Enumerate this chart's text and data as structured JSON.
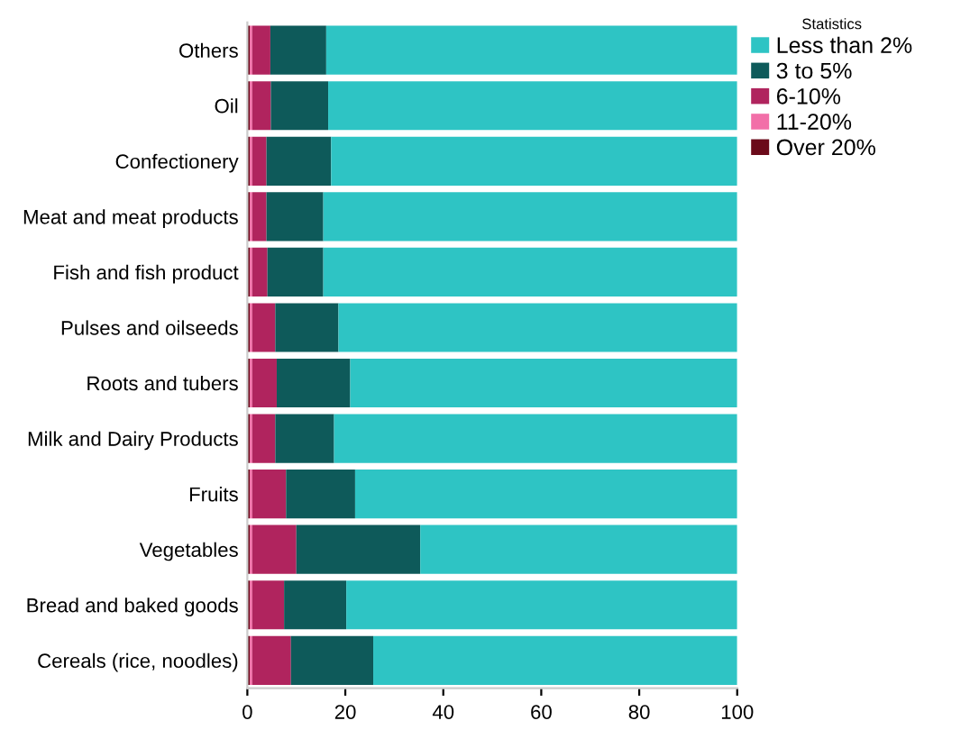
{
  "chart_data": {
    "type": "bar",
    "orientation": "horizontal",
    "stacked": true,
    "categories": [
      "Others",
      "Oil",
      "Confectionery",
      "Meat and meat products",
      "Fish and fish product",
      "Pulses and oilseeds",
      "Roots and tubers",
      "Milk and Dairy Products",
      "Fruits",
      "Vegetables",
      "Bread and baked goods",
      "Cereals (rice, noodles)"
    ],
    "series": [
      {
        "name": "Over 20%",
        "color": "#6b0a1a",
        "values": [
          0.5,
          0.5,
          0.5,
          0.5,
          0.5,
          0.5,
          0.5,
          0.5,
          0.5,
          0.5,
          0.5,
          0.5
        ]
      },
      {
        "name": "11-20%",
        "color": "#f26fa8",
        "values": [
          0.5,
          0.5,
          0.5,
          0.5,
          0.5,
          0.5,
          0.5,
          0.5,
          0.5,
          0.5,
          0.5,
          0.5
        ]
      },
      {
        "name": "6-10%",
        "color": "#b0245e",
        "values": [
          3.7,
          3.8,
          2.9,
          2.9,
          3.1,
          4.7,
          5.0,
          4.7,
          6.9,
          9.0,
          6.5,
          7.9
        ]
      },
      {
        "name": "3 to 5%",
        "color": "#0e5a5a",
        "values": [
          11.4,
          11.7,
          13.2,
          11.6,
          11.4,
          12.9,
          15.0,
          12.0,
          14.1,
          25.3,
          12.7,
          16.8
        ]
      },
      {
        "name": "Less than 2%",
        "color": "#2ec4c4",
        "values": [
          83.9,
          83.5,
          82.9,
          84.5,
          84.5,
          81.4,
          79.0,
          82.3,
          78.0,
          64.7,
          79.8,
          74.3
        ]
      }
    ],
    "legend_title": "Statistics",
    "legend": "right",
    "xlim": [
      0,
      100
    ],
    "xticks": [
      0,
      20,
      40,
      60,
      80,
      100
    ],
    "grid": false
  }
}
